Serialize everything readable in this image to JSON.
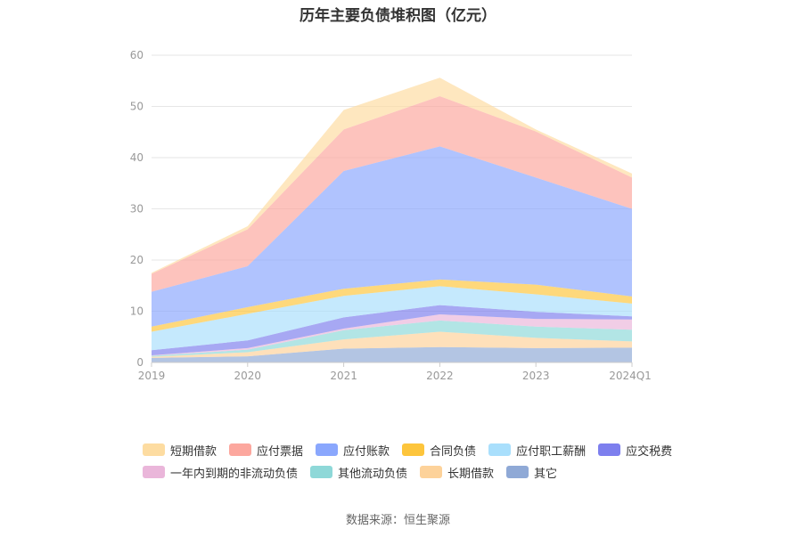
{
  "chart_data": {
    "type": "area",
    "title": "历年主要负债堆积图（亿元）",
    "categories": [
      "2019",
      "2020",
      "2021",
      "2022",
      "2023",
      "2024Q1"
    ],
    "ylim": [
      0,
      60
    ],
    "yticks": [
      0,
      10,
      20,
      30,
      40,
      50,
      60
    ],
    "stacked": true,
    "series": [
      {
        "name": "其它",
        "color": "#8fa9d6",
        "values": [
          0.9,
          1.2,
          2.7,
          3.0,
          2.8,
          2.9
        ]
      },
      {
        "name": "长期借款",
        "color": "#fdd29a",
        "values": [
          0.2,
          0.8,
          1.8,
          3.0,
          2.0,
          1.2
        ]
      },
      {
        "name": "其他流动负债",
        "color": "#8ed8d8",
        "values": [
          0.2,
          0.5,
          1.8,
          2.2,
          2.2,
          2.3
        ]
      },
      {
        "name": "一年内到期的非流动负债",
        "color": "#eab6da",
        "values": [
          0.1,
          0.3,
          0.3,
          1.2,
          1.5,
          2.0
        ]
      },
      {
        "name": "应交税费",
        "color": "#7d7fee",
        "values": [
          1.0,
          1.5,
          2.2,
          1.8,
          1.4,
          0.6
        ]
      },
      {
        "name": "应付职工薪酬",
        "color": "#a9dffc",
        "values": [
          3.6,
          5.2,
          4.2,
          3.7,
          3.4,
          2.5
        ]
      },
      {
        "name": "合同负债",
        "color": "#fdc53c",
        "values": [
          1.0,
          1.3,
          1.4,
          1.3,
          1.9,
          1.4
        ]
      },
      {
        "name": "应付账款",
        "color": "#8aa7fd",
        "values": [
          6.8,
          8.0,
          23.0,
          26.0,
          20.9,
          17.1
        ]
      },
      {
        "name": "应付票据",
        "color": "#fca79e",
        "values": [
          3.5,
          7.2,
          8.1,
          9.8,
          9.0,
          6.1
        ]
      },
      {
        "name": "短期借款",
        "color": "#fddca1",
        "values": [
          0.2,
          0.6,
          3.8,
          3.6,
          0.4,
          0.8
        ]
      }
    ],
    "legend_order": [
      "短期借款",
      "应付票据",
      "应付账款",
      "合同负债",
      "应付职工薪酬",
      "应交税费",
      "一年内到期的非流动负债",
      "其他流动负债",
      "长期借款",
      "其它"
    ],
    "legend_position": "bottom"
  },
  "source_text": "数据来源：恒生聚源"
}
